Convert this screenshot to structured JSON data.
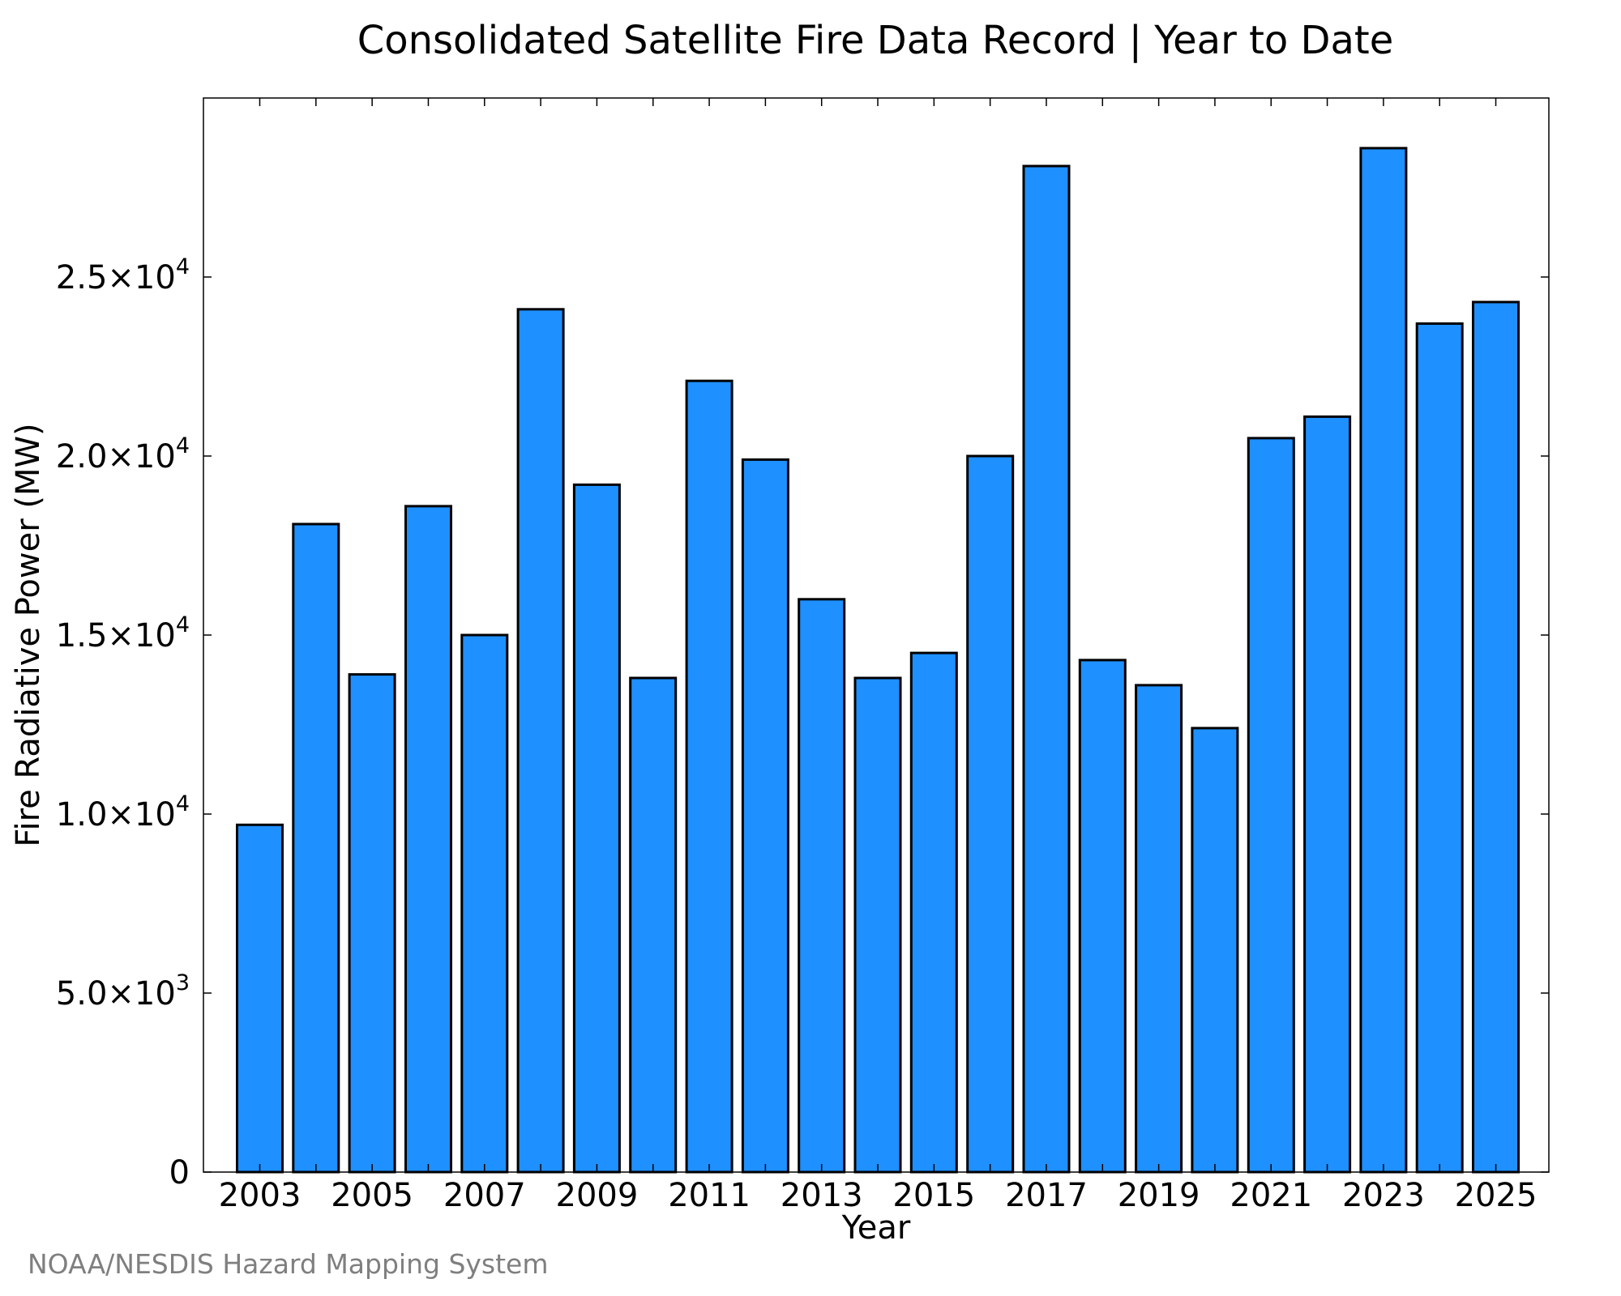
{
  "chart_data": {
    "type": "bar",
    "title": "Consolidated Satellite Fire Data Record | Year to Date",
    "xlabel": "Year",
    "ylabel": "Fire Radiative Power (MW)",
    "categories": [
      "2003",
      "2004",
      "2005",
      "2006",
      "2007",
      "2008",
      "2009",
      "2010",
      "2011",
      "2012",
      "2013",
      "2014",
      "2015",
      "2016",
      "2017",
      "2018",
      "2019",
      "2020",
      "2021",
      "2022",
      "2023",
      "2024",
      "2025"
    ],
    "values": [
      9700,
      18100,
      13900,
      18600,
      15000,
      24100,
      19200,
      13800,
      22100,
      19900,
      16000,
      13800,
      14500,
      20000,
      28100,
      14300,
      13600,
      12400,
      20500,
      21100,
      28600,
      23700,
      24300
    ],
    "x_tick_labels": [
      "2003",
      "2005",
      "2007",
      "2009",
      "2011",
      "2013",
      "2015",
      "2017",
      "2019",
      "2021",
      "2023",
      "2025"
    ],
    "y_ticks": [
      {
        "value": 0,
        "mantissa": "0",
        "exp": ""
      },
      {
        "value": 5000,
        "mantissa": "5.0×10",
        "exp": "3"
      },
      {
        "value": 10000,
        "mantissa": "1.0×10",
        "exp": "4"
      },
      {
        "value": 15000,
        "mantissa": "1.5×10",
        "exp": "4"
      },
      {
        "value": 20000,
        "mantissa": "2.0×10",
        "exp": "4"
      },
      {
        "value": 25000,
        "mantissa": "2.5×10",
        "exp": "4"
      }
    ],
    "ylim": [
      0,
      30000
    ],
    "grid": false,
    "legend": "none",
    "bar_color": "#1e90ff",
    "bar_edge_color": "#000000"
  },
  "credit": "NOAA/NESDIS Hazard Mapping System"
}
